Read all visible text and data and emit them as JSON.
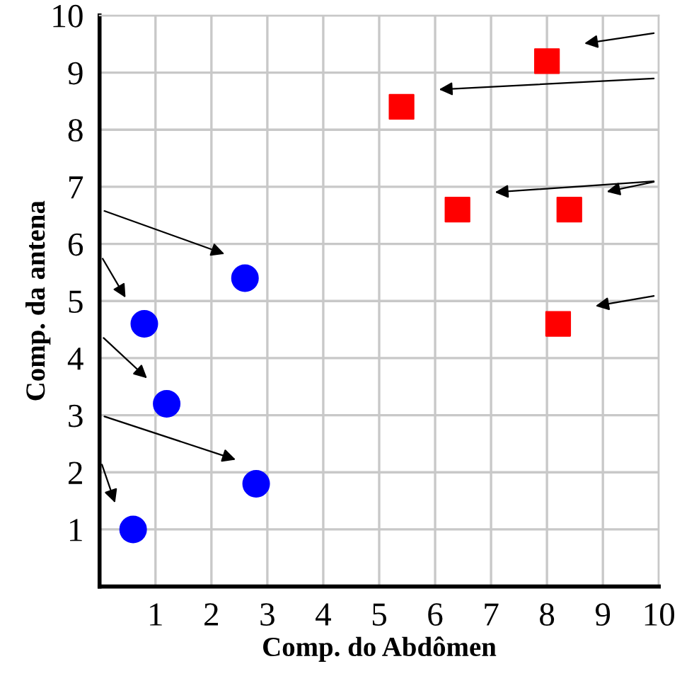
{
  "chart_data": {
    "type": "scatter",
    "xlabel": "Comp. do Abdômen",
    "ylabel": "Comp. da antena",
    "xlim": [
      0,
      10
    ],
    "ylim": [
      0,
      10
    ],
    "xticks": [
      1,
      2,
      3,
      4,
      5,
      6,
      7,
      8,
      9,
      10
    ],
    "yticks": [
      1,
      2,
      3,
      4,
      5,
      6,
      7,
      8,
      9,
      10
    ],
    "grid": true,
    "legend": false,
    "series": [
      {
        "color": "#0000ff",
        "marker": "circle",
        "x": [
          0.6,
          1.2,
          2.8,
          0.8,
          2.6
        ],
        "values": [
          1.0,
          3.2,
          1.8,
          4.6,
          5.4
        ]
      },
      {
        "color": "#ff0000",
        "marker": "square",
        "x": [
          8.0,
          5.4,
          6.4,
          8.4,
          8.2
        ],
        "values": [
          9.2,
          8.4,
          6.6,
          6.6,
          4.6
        ]
      }
    ]
  }
}
